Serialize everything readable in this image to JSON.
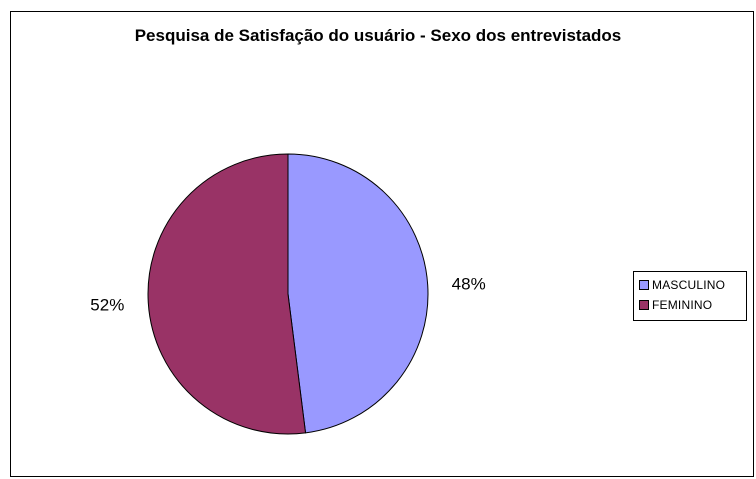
{
  "chart_data": {
    "type": "pie",
    "title": "Pesquisa de Satisfação do usuário - Sexo dos entrevistados",
    "categories": [
      "MASCULINO",
      "FEMININO"
    ],
    "values": [
      48,
      52
    ],
    "data_labels": [
      "48%",
      "52%"
    ],
    "colors": [
      "#9999FF",
      "#993366"
    ],
    "legend_position": "right"
  }
}
